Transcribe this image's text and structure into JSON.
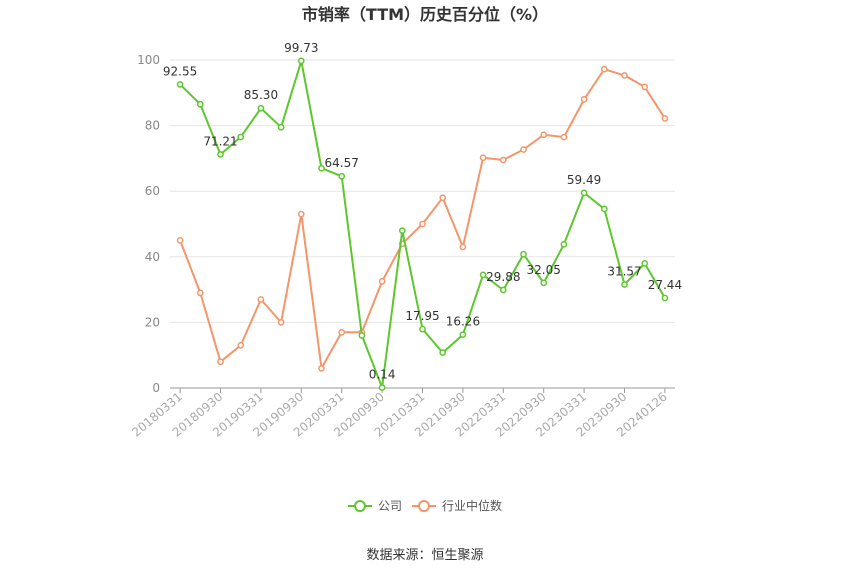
{
  "chart_data": {
    "type": "line",
    "title": "市销率（TTM）历史百分位（%）",
    "ylim": [
      0,
      100
    ],
    "yticks": [
      0,
      20,
      40,
      60,
      80,
      100
    ],
    "grid": true,
    "legend_position": "bottom",
    "x": [
      "20180331",
      "20180630",
      "20180930",
      "20181231",
      "20190331",
      "20190630",
      "20190930",
      "20191231",
      "20200331",
      "20200630",
      "20200930",
      "20201231",
      "20210331",
      "20210630",
      "20210930",
      "20211231",
      "20220331",
      "20220630",
      "20220930",
      "20221231",
      "20230331",
      "20230630",
      "20230930",
      "20231231",
      "20240126"
    ],
    "x_tick_labels": [
      "20180331",
      "20180930",
      "20190331",
      "20190930",
      "20200331",
      "20200930",
      "20210331",
      "20210930",
      "20220331",
      "20220930",
      "20230331",
      "20230930",
      "20240126"
    ],
    "series": [
      {
        "name": "公司",
        "color": "#5cc72e",
        "values": [
          92.55,
          86.5,
          71.21,
          76.5,
          85.3,
          79.5,
          99.73,
          67.0,
          64.57,
          16.0,
          0.14,
          48.0,
          17.95,
          10.8,
          16.26,
          34.5,
          29.88,
          40.8,
          32.05,
          43.8,
          59.49,
          54.6,
          31.57,
          38.0,
          27.44
        ],
        "labels": {
          "0": "92.55",
          "2": "71.21",
          "4": "85.30",
          "6": "99.73",
          "8": "64.57",
          "10": "0.14",
          "12": "17.95",
          "14": "16.26",
          "16": "29.88",
          "18": "32.05",
          "20": "59.49",
          "22": "31.57",
          "24": "27.44"
        }
      },
      {
        "name": "行业中位数",
        "color": "#f4956a",
        "values": [
          45.0,
          29.0,
          8.0,
          13.0,
          27.0,
          20.0,
          53.0,
          6.0,
          17.0,
          17.0,
          32.5,
          44.0,
          50.0,
          58.0,
          43.0,
          70.2,
          69.5,
          72.7,
          77.2,
          76.5,
          88.0,
          97.2,
          95.3,
          91.8,
          82.2
        ]
      }
    ]
  },
  "source_text": "数据来源：恒生聚源"
}
